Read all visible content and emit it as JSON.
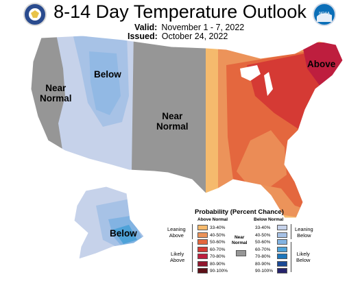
{
  "header": {
    "title": "8-14 Day Temperature Outlook",
    "valid_label": "Valid:",
    "valid_value": "November 1 - 7, 2022",
    "issued_label": "Issued:",
    "issued_value": "October 24, 2022"
  },
  "logos": {
    "left": "commerce-seal-icon",
    "right": "noaa-logo-icon",
    "right_text": "NOAA"
  },
  "map_labels": {
    "west_near_normal": [
      "Near",
      "Normal"
    ],
    "northwest_below": "Below",
    "central_near_normal": [
      "Near",
      "Normal"
    ],
    "northeast_above": "Above",
    "alaska_below": "Below"
  },
  "legend": {
    "title": "Probability (Percent Chance)",
    "above_header": "Above Normal",
    "below_header": "Below Normal",
    "near_normal_label": [
      "Near",
      "Normal"
    ],
    "leaning_above": [
      "Leaning",
      "Above"
    ],
    "likely_above": [
      "Likely",
      "Above"
    ],
    "leaning_below": [
      "Leaning",
      "Below"
    ],
    "likely_below": [
      "Likely",
      "Below"
    ],
    "above_rows": [
      {
        "label": "33-40%",
        "color": "#f5ba6d"
      },
      {
        "label": "40-50%",
        "color": "#ec935a"
      },
      {
        "label": "50-60%",
        "color": "#e4673e"
      },
      {
        "label": "60-70%",
        "color": "#d53a34"
      },
      {
        "label": "70-80%",
        "color": "#be1e3e"
      },
      {
        "label": "80-90%",
        "color": "#91172e"
      },
      {
        "label": "90-100%",
        "color": "#5d0f17"
      }
    ],
    "below_rows": [
      {
        "label": "33-40%",
        "color": "#c6d2ea"
      },
      {
        "label": "40-50%",
        "color": "#a7c2e6"
      },
      {
        "label": "50-60%",
        "color": "#82b3e2"
      },
      {
        "label": "60-70%",
        "color": "#4ea2d8"
      },
      {
        "label": "70-80%",
        "color": "#1d76bb"
      },
      {
        "label": "80-90%",
        "color": "#1b4a96"
      },
      {
        "label": "90-100%",
        "color": "#26236c"
      }
    ],
    "near_normal_color": "#969696"
  },
  "colors": {
    "outside_us": "#ffffff",
    "near_normal": "#969696",
    "below_33": "#c6d2ea",
    "below_40": "#a7c2e6",
    "below_50": "#82b3e2",
    "below_60": "#4ea2d8",
    "above_33": "#f5ba6d",
    "above_40": "#ec935a",
    "above_50": "#e4673e",
    "above_60": "#d53a34",
    "above_70": "#be1e3e"
  }
}
